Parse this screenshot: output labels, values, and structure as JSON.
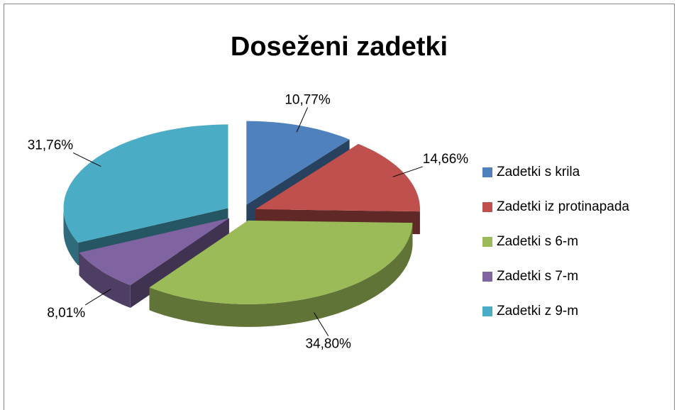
{
  "chart_data": {
    "type": "pie",
    "title": "Doseženi zadetki",
    "categories": [
      "Zadetki s krila",
      "Zadetki iz protinapada",
      "Zadetki s 6-m",
      "Zadetki s 7-m",
      "Zadetki z 9-m"
    ],
    "values": [
      10.77,
      14.66,
      34.8,
      8.01,
      31.76
    ],
    "value_labels": [
      "10,77%",
      "14,66%",
      "34,80%",
      "8,01%",
      "31,76%"
    ],
    "colors": [
      "#4f81bd",
      "#c0504d",
      "#9bbb59",
      "#8064a2",
      "#4bacc6"
    ],
    "legend": "right"
  }
}
